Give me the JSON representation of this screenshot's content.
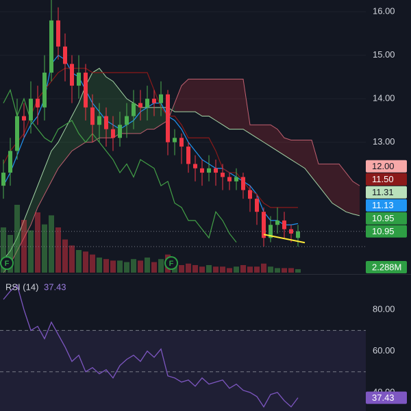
{
  "chart_data": [
    {
      "type": "candlestick",
      "ylim": [
        9.97,
        16.27
      ],
      "yticks": [
        {
          "value": 13,
          "label": "13.00"
        },
        {
          "value": 14,
          "label": "14.00"
        },
        {
          "value": 15,
          "label": "15.00"
        },
        {
          "value": 16,
          "label": "16.00"
        }
      ],
      "grid": true,
      "up_color": "#4caf50",
      "down_color": "#f23645",
      "open": [
        12.0,
        12.3,
        12.8,
        13.6,
        13.5,
        14.0,
        13.8,
        14.6,
        15.8,
        15.2,
        14.8,
        14.3,
        14.6,
        13.8,
        13.4,
        13.6,
        13.3,
        13.1,
        13.4,
        13.6,
        13.9,
        13.8,
        14.0,
        13.9,
        14.1,
        13.0,
        13.1,
        12.9,
        12.5,
        12.4,
        12.3,
        12.4,
        12.3,
        12.2,
        12.1,
        12.2,
        11.9,
        11.7,
        11.4,
        10.8,
        11.1,
        11.2,
        11.0,
        10.8
      ],
      "high": [
        12.6,
        13.1,
        14.0,
        13.9,
        14.4,
        14.3,
        15.0,
        16.3,
        16.1,
        15.5,
        15.0,
        15.0,
        14.8,
        14.1,
        13.9,
        13.8,
        13.6,
        13.7,
        13.9,
        14.2,
        14.2,
        14.3,
        14.2,
        14.4,
        14.2,
        13.3,
        13.2,
        13.0,
        12.7,
        12.6,
        12.7,
        12.6,
        12.5,
        12.3,
        12.4,
        12.3,
        12.0,
        11.8,
        11.5,
        11.3,
        11.5,
        11.4,
        11.1,
        11.1
      ],
      "low": [
        11.7,
        12.0,
        12.6,
        13.1,
        13.2,
        13.4,
        13.5,
        14.4,
        14.9,
        14.4,
        13.9,
        14.0,
        13.5,
        13.0,
        13.0,
        12.9,
        12.8,
        12.9,
        13.1,
        13.3,
        13.5,
        13.5,
        13.6,
        13.6,
        12.7,
        12.7,
        12.5,
        12.3,
        12.1,
        12.0,
        12.1,
        12.0,
        11.9,
        11.9,
        11.9,
        11.7,
        11.4,
        11.1,
        10.6,
        10.7,
        10.9,
        10.8,
        10.7,
        10.6
      ],
      "close": [
        12.3,
        12.8,
        13.6,
        13.5,
        14.0,
        13.8,
        14.6,
        15.8,
        15.2,
        14.8,
        14.3,
        14.6,
        13.8,
        13.4,
        13.6,
        13.3,
        13.1,
        13.4,
        13.6,
        13.9,
        13.8,
        14.0,
        13.9,
        14.1,
        13.0,
        13.1,
        12.9,
        12.5,
        12.4,
        12.3,
        12.4,
        12.3,
        12.2,
        12.1,
        12.2,
        11.9,
        11.7,
        11.4,
        10.8,
        11.1,
        11.2,
        11.0,
        10.9,
        10.95
      ],
      "volume": {
        "ylim": [
          0,
          50000000
        ],
        "values": [
          30000000,
          25000000,
          45000000,
          35000000,
          28000000,
          40000000,
          32000000,
          38000000,
          30000000,
          22000000,
          18000000,
          15000000,
          14000000,
          12000000,
          10000000,
          9000000,
          8000000,
          8000000,
          7000000,
          9000000,
          8000000,
          10000000,
          7000000,
          9000000,
          12000000,
          7000000,
          5000000,
          6000000,
          5000000,
          4000000,
          5000000,
          4000000,
          4000000,
          3000000,
          4000000,
          5000000,
          4000000,
          4000000,
          6000000,
          4000000,
          3000000,
          3000000,
          3000000,
          2288000
        ],
        "tag": {
          "value": 2288000,
          "label": "2.288M",
          "color": "#2e9e44",
          "text_color": "#ffffff"
        }
      },
      "cloud": {
        "up_color": "rgba(76,175,80,0.18)",
        "down_color": "rgba(242,54,69,0.18)",
        "a_color": "#a5d6a7",
        "b_color": "#c06070",
        "span_a": [
          10.3,
          10.5,
          10.8,
          11.2,
          11.6,
          12.0,
          12.4,
          12.8,
          13.0,
          13.3,
          13.6,
          13.9,
          14.3,
          14.6,
          14.7,
          14.5,
          14.4,
          14.2,
          14.0,
          13.9,
          13.8,
          13.8,
          13.8,
          13.8,
          13.8,
          13.7,
          13.7,
          13.7,
          13.7,
          13.6,
          13.6,
          13.5,
          13.4,
          13.3,
          13.3,
          13.3,
          13.2,
          13.1,
          13.0,
          12.9,
          12.8,
          12.7,
          12.6,
          12.5,
          12.4,
          12.2,
          12.0,
          11.8,
          11.6,
          11.5,
          11.4,
          11.35,
          11.31
        ],
        "span_b": [
          10.0,
          10.2,
          10.5,
          10.8,
          11.1,
          11.5,
          11.8,
          12.1,
          12.4,
          12.6,
          12.8,
          12.9,
          13.0,
          13.0,
          13.1,
          13.1,
          13.1,
          13.2,
          13.2,
          13.2,
          13.2,
          13.3,
          13.3,
          13.4,
          13.5,
          13.9,
          14.3,
          14.45,
          14.45,
          14.45,
          14.45,
          14.45,
          14.45,
          14.45,
          14.45,
          14.45,
          13.4,
          13.4,
          13.4,
          13.4,
          13.3,
          13.1,
          13.05,
          13.05,
          13.05,
          13.05,
          12.5,
          12.5,
          12.5,
          12.5,
          12.3,
          12.1,
          12.0
        ]
      },
      "lines": [
        {
          "color": "#2196f3",
          "values": [
            12.0,
            12.3,
            12.7,
            13.1,
            13.4,
            13.6,
            14.0,
            14.8,
            15.0,
            14.9,
            14.6,
            14.5,
            14.2,
            13.9,
            13.7,
            13.5,
            13.4,
            13.3,
            13.4,
            13.5,
            13.7,
            13.8,
            13.9,
            13.9,
            13.6,
            13.5,
            13.3,
            13.0,
            12.8,
            12.6,
            12.5,
            12.4,
            12.4,
            12.3,
            12.2,
            12.1,
            12.0,
            11.8,
            11.4,
            11.2,
            11.2,
            11.1,
            11.1,
            11.13
          ]
        },
        {
          "color": "#8b1a1a",
          "values": [
            12.5,
            12.8,
            13.0,
            13.2,
            13.6,
            14.0,
            14.2,
            14.4,
            14.6,
            14.7,
            14.7,
            14.7,
            14.7,
            14.6,
            14.6,
            14.6,
            14.6,
            14.6,
            14.6,
            14.6,
            14.6,
            14.6,
            14.2,
            13.8,
            13.6,
            13.6,
            13.4,
            13.1,
            13.1,
            13.1,
            13.1,
            12.8,
            12.4,
            12.3,
            12.3,
            12.1,
            11.9,
            11.8,
            11.6,
            11.5,
            11.5,
            11.5,
            11.5,
            11.5
          ]
        },
        {
          "color": "#43a047",
          "values": [
            13.9,
            14.2,
            13.6,
            14.0,
            13.5,
            13.3,
            13.1,
            13.0,
            13.3,
            13.4,
            13.5,
            13.2,
            13.0,
            13.2,
            13.0,
            12.8,
            12.6,
            12.3,
            12.5,
            12.2,
            12.6,
            12.5,
            12.4,
            12.0,
            12.1,
            11.6,
            11.5,
            11.2,
            11.2,
            11.0,
            10.8,
            11.4,
            11.2,
            10.9,
            10.7
          ]
        }
      ],
      "hlines": [
        10.95,
        10.6
      ],
      "trendline": {
        "x": [
          38,
          44
        ],
        "y": [
          10.88,
          10.69
        ],
        "color": "#ffeb3b"
      },
      "events": [
        {
          "index": 0,
          "label": "F"
        },
        {
          "index": 24,
          "label": "F"
        }
      ],
      "tags": [
        {
          "value": 12.0,
          "label": "12.00",
          "color": "#f7a8a8",
          "text_color": "#131722"
        },
        {
          "value": 11.5,
          "label": "11.50",
          "color": "#8b1a1a",
          "text_color": "#ffffff"
        },
        {
          "value": 11.31,
          "label": "11.31",
          "color": "#b9e0bb",
          "text_color": "#131722"
        },
        {
          "value": 11.13,
          "label": "11.13",
          "color": "#2196f3",
          "text_color": "#ffffff"
        },
        {
          "value": 10.95,
          "label": "10.95",
          "color": "#2e9e44",
          "text_color": "#ffffff"
        },
        {
          "value": 10.95,
          "label": "10.95",
          "color": "#2e9e44",
          "text_color": "#ffffff"
        }
      ]
    },
    {
      "type": "line",
      "title": "RSI (14)",
      "color": "#7e57c2",
      "ylim": [
        31,
        94
      ],
      "yticks": [
        {
          "value": 40,
          "label": "40.00"
        },
        {
          "value": 60,
          "label": "60.00"
        },
        {
          "value": 80,
          "label": "80.00"
        }
      ],
      "bands": [
        70,
        50,
        30
      ],
      "values": [
        85,
        89,
        92,
        80,
        70,
        72,
        66,
        74,
        68,
        62,
        55,
        58,
        50,
        52,
        49,
        51,
        47,
        53,
        56,
        58,
        55,
        60,
        57,
        61,
        48,
        47,
        45,
        46,
        43,
        47,
        44,
        45,
        46,
        42,
        44,
        41,
        40,
        38,
        33,
        39,
        40,
        36,
        33,
        37.43
      ],
      "tag": {
        "value": 37.43,
        "color": "#7e57c2",
        "text_color": "#ffffff"
      }
    }
  ]
}
